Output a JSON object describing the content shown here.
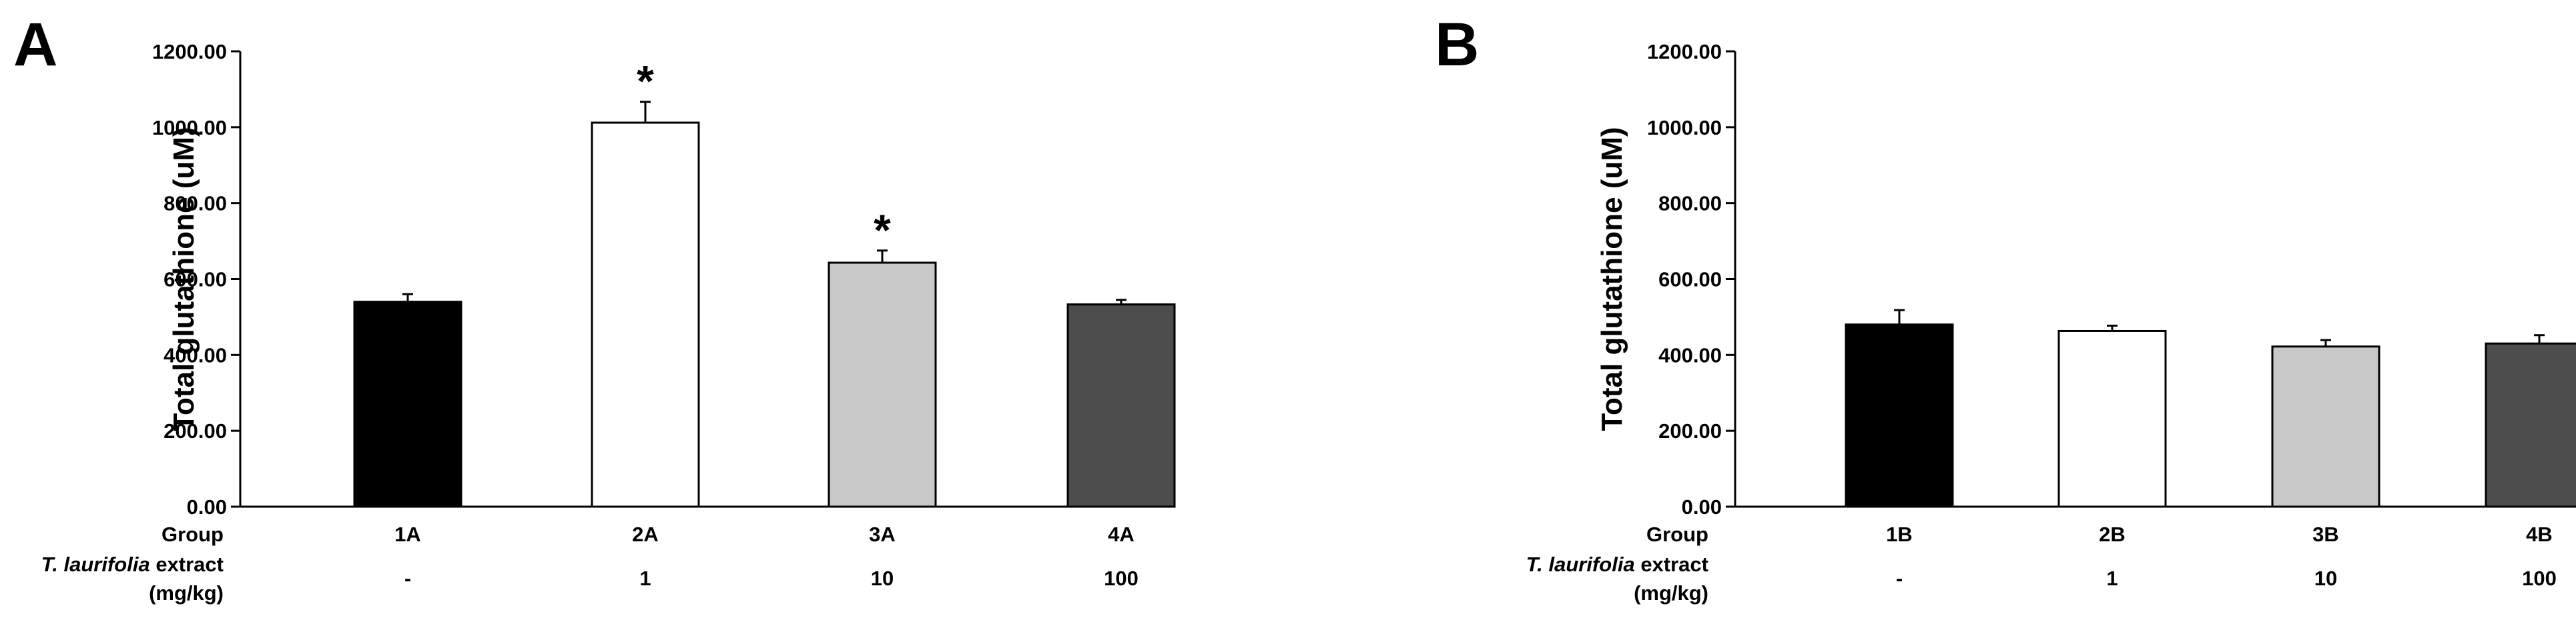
{
  "chart_data": [
    {
      "type": "bar",
      "panel": "A",
      "ylabel": "Total glutathione (uM)",
      "ylim": [
        0,
        1200
      ],
      "yticks": [
        "0.00",
        "200.00",
        "400.00",
        "600.00",
        "800.00",
        "1000.00",
        "1200.00"
      ],
      "categories": [
        "1A",
        "2A",
        "3A",
        "4A"
      ],
      "values": [
        540,
        1012,
        643,
        533
      ],
      "errors": [
        20,
        55,
        32,
        12
      ],
      "bar_colors": [
        "#000000",
        "#ffffff",
        "#c8c8c8",
        "#4d4d4d"
      ],
      "significance": [
        "",
        "*",
        "*",
        ""
      ],
      "row_labels": {
        "group": "Group",
        "extract_italic": "T. laurifolia",
        "extract_rest": " extract",
        "unit": "(mg/kg)"
      },
      "doses": [
        "-",
        "1",
        "10",
        "100"
      ]
    },
    {
      "type": "bar",
      "panel": "B",
      "ylabel": "Total glutathione (uM)",
      "ylim": [
        0,
        1200
      ],
      "yticks": [
        "0.00",
        "200.00",
        "400.00",
        "600.00",
        "800.00",
        "1000.00",
        "1200.00"
      ],
      "categories": [
        "1B",
        "2B",
        "3B",
        "4B"
      ],
      "values": [
        480,
        463,
        422,
        430
      ],
      "errors": [
        38,
        14,
        17,
        22
      ],
      "bar_colors": [
        "#000000",
        "#ffffff",
        "#c8c8c8",
        "#4d4d4d"
      ],
      "significance": [
        "",
        "",
        "",
        ""
      ],
      "row_labels": {
        "group": "Group",
        "extract_italic": "T. laurifolia",
        "extract_rest": " extract",
        "unit": "(mg/kg)"
      },
      "doses": [
        "-",
        "1",
        "10",
        "100"
      ]
    }
  ]
}
